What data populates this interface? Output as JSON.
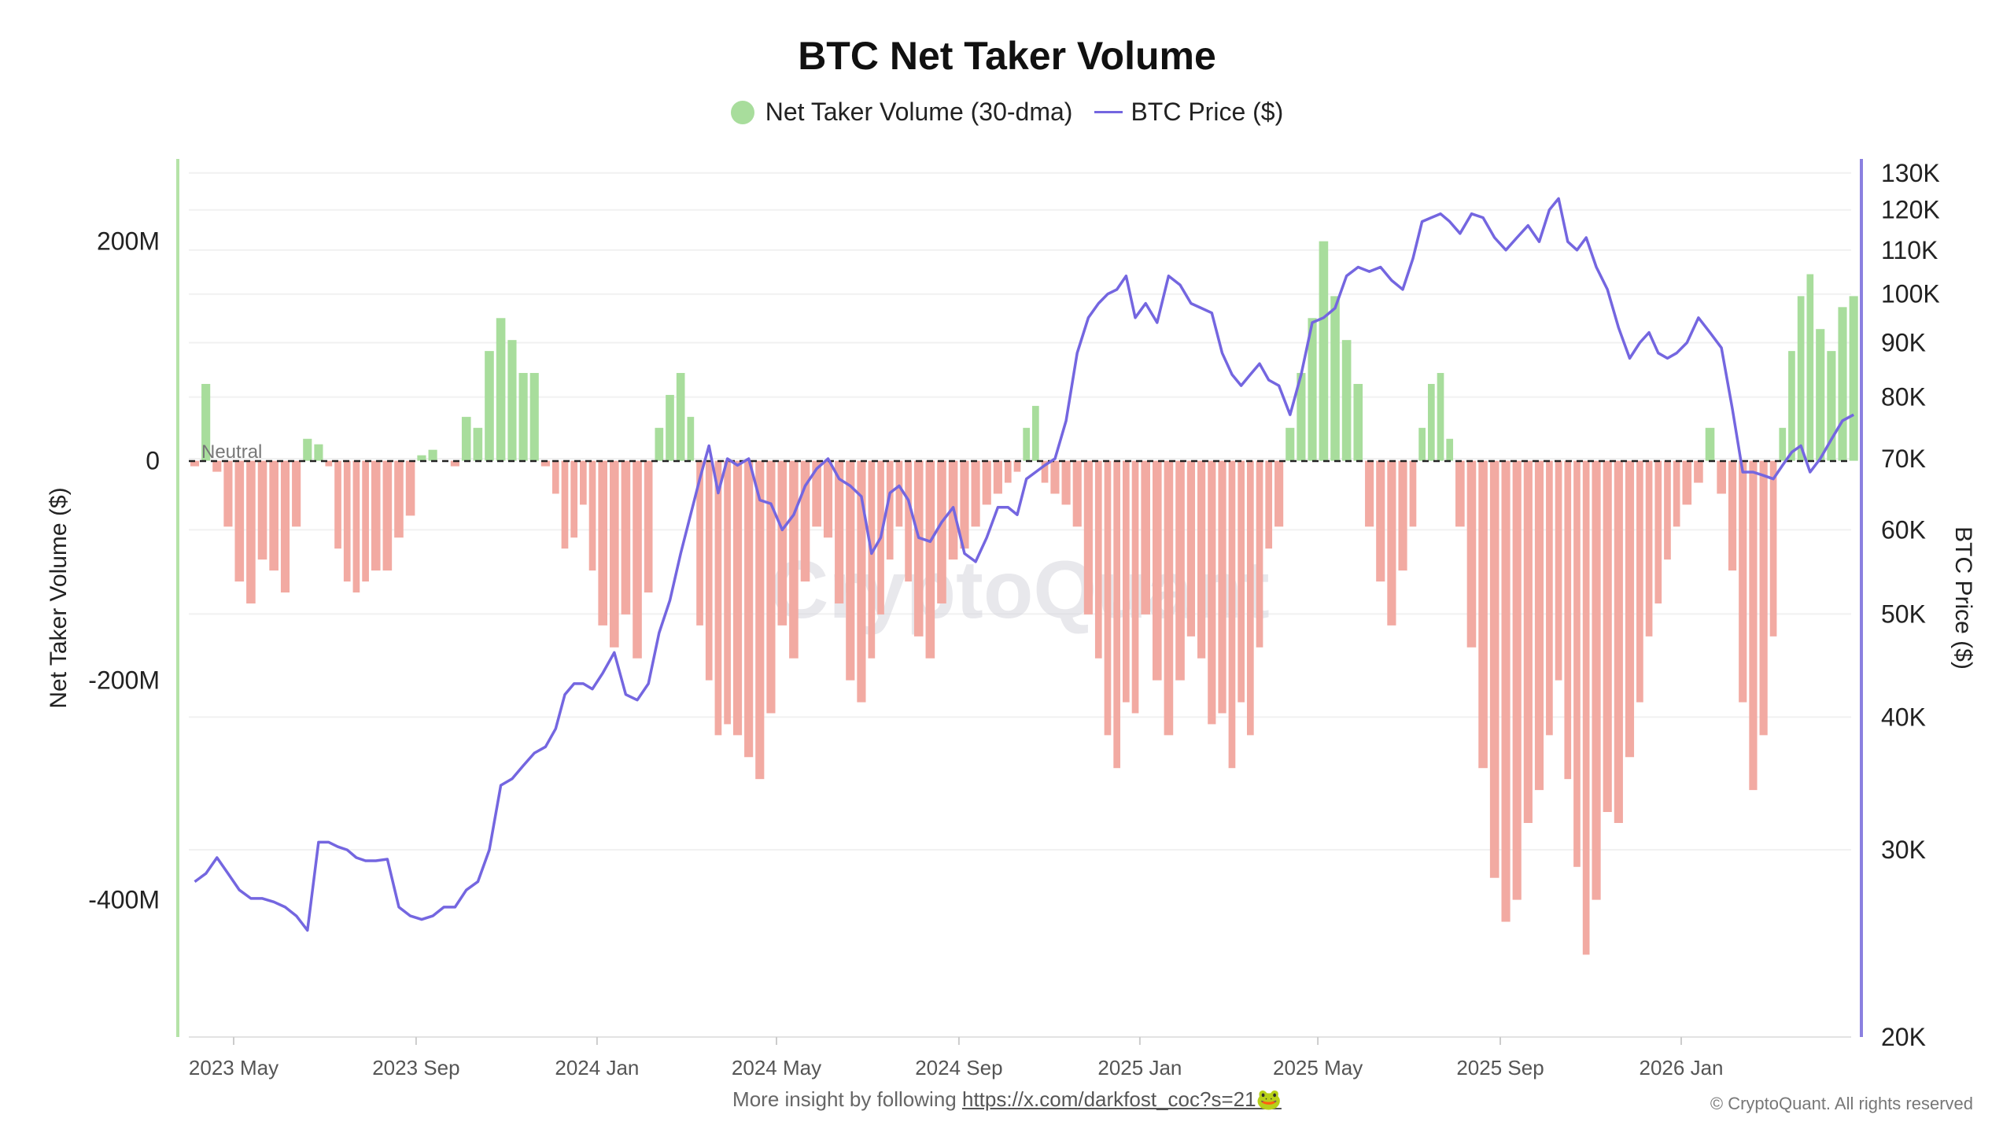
{
  "chart_data": {
    "type": "bar+line",
    "title": "BTC Net Taker Volume",
    "legend": [
      {
        "name": "Net Taker Volume (30-dma)",
        "marker": "circle",
        "color": "#a8dd9c"
      },
      {
        "name": "BTC Price ($)",
        "marker": "line",
        "color": "#7466e0"
      }
    ],
    "legend_placement": "top-center",
    "ylabel_left": "Net Taker Volume ($)",
    "ylabel_right": "BTC Price ($)",
    "left_ticks": [
      "200M",
      "0",
      "-200M",
      "-400M"
    ],
    "left_tick_values": [
      200,
      0,
      -200,
      -400
    ],
    "left_ylim_millions": [
      -525,
      275
    ],
    "right_ticks": [
      "130K",
      "120K",
      "110K",
      "100K",
      "90K",
      "80K",
      "70K",
      "60K",
      "50K",
      "40K",
      "30K",
      "20K"
    ],
    "right_tick_values": [
      130000,
      120000,
      110000,
      100000,
      90000,
      80000,
      70000,
      60000,
      50000,
      40000,
      30000,
      20000
    ],
    "right_scale": "log",
    "right_ylim": [
      20000,
      134000
    ],
    "x_ticks": [
      "2023 May",
      "2023 Sep",
      "2024 Jan",
      "2024 May",
      "2024 Sep",
      "2025 Jan",
      "2025 May",
      "2025 Sep",
      "2026 Jan"
    ],
    "x_tick_dates": [
      "2023-05-01",
      "2023-09-01",
      "2024-01-01",
      "2024-05-01",
      "2024-09-01",
      "2025-01-01",
      "2025-05-01",
      "2025-09-01",
      "2026-01-01"
    ],
    "neutral_label": "Neutral",
    "positive_color": "#a8dd9c",
    "negative_color": "#f2aaa2",
    "price_color": "#7466e0",
    "grid": true,
    "watermark": "CryptoQuant",
    "series_weekly_by_month": [
      {
        "month": "2023-04",
        "net_taker_m": [
          -5,
          70,
          -10,
          -60
        ],
        "price": [
          28000,
          28500,
          29500,
          28500
        ]
      },
      {
        "month": "2023-05",
        "net_taker_m": [
          -110,
          -130,
          -90,
          -100
        ],
        "price": [
          27500,
          27000,
          27000,
          26800
        ]
      },
      {
        "month": "2023-06",
        "net_taker_m": [
          -120,
          -60,
          20,
          15
        ],
        "price": [
          26500,
          26000,
          25200,
          30500
        ]
      },
      {
        "month": "2023-07",
        "net_taker_m": [
          -5,
          -80,
          -110,
          -120,
          -110
        ],
        "price": [
          30500,
          30200,
          30000,
          29500,
          29300
        ]
      },
      {
        "month": "2023-08",
        "net_taker_m": [
          -100,
          -100,
          -70,
          -50
        ],
        "price": [
          29300,
          29400,
          26500,
          26000
        ]
      },
      {
        "month": "2023-09",
        "net_taker_m": [
          5,
          10,
          0,
          -5
        ],
        "price": [
          25800,
          26000,
          26500,
          26500
        ]
      },
      {
        "month": "2023-10",
        "net_taker_m": [
          40,
          30,
          100,
          130
        ],
        "price": [
          27500,
          28000,
          30000,
          34500
        ]
      },
      {
        "month": "2023-11",
        "net_taker_m": [
          110,
          80,
          80,
          -5
        ],
        "price": [
          35000,
          36000,
          37000,
          37500
        ]
      },
      {
        "month": "2023-12",
        "net_taker_m": [
          -30,
          -80,
          -70,
          -40,
          -100
        ],
        "price": [
          39000,
          42000,
          43000,
          43000,
          42500
        ]
      },
      {
        "month": "2024-01",
        "net_taker_m": [
          -150,
          -170,
          -140,
          -180
        ],
        "price": [
          44000,
          46000,
          42000,
          41500
        ]
      },
      {
        "month": "2024-02",
        "net_taker_m": [
          -120,
          30,
          60,
          80
        ],
        "price": [
          43000,
          48000,
          51500,
          57000
        ]
      },
      {
        "month": "2024-03",
        "net_taker_m": [
          40,
          -150,
          -200,
          -250,
          -240
        ],
        "price": [
          62000,
          67000,
          72000,
          65000,
          70000
        ]
      },
      {
        "month": "2024-04",
        "net_taker_m": [
          -250,
          -270,
          -290,
          -230
        ],
        "price": [
          69000,
          70000,
          64000,
          63500
        ]
      },
      {
        "month": "2024-05",
        "net_taker_m": [
          -150,
          -180,
          -110,
          -60
        ],
        "price": [
          60000,
          62000,
          66000,
          68500
        ]
      },
      {
        "month": "2024-06",
        "net_taker_m": [
          -70,
          -130,
          -200,
          -220
        ],
        "price": [
          70000,
          67000,
          66000,
          64500
        ]
      },
      {
        "month": "2024-07",
        "net_taker_m": [
          -180,
          -140,
          -90,
          -60,
          -110
        ],
        "price": [
          57000,
          59000,
          65000,
          66000,
          64000
        ]
      },
      {
        "month": "2024-08",
        "net_taker_m": [
          -160,
          -180,
          -130,
          -90
        ],
        "price": [
          59000,
          58500,
          61000,
          63000
        ]
      },
      {
        "month": "2024-09",
        "net_taker_m": [
          -80,
          -60,
          -40,
          -30
        ],
        "price": [
          57000,
          56000,
          59000,
          63000
        ]
      },
      {
        "month": "2024-10",
        "net_taker_m": [
          -20,
          -10,
          30,
          50,
          -20
        ],
        "price": [
          63000,
          62000,
          67000,
          68000,
          69000
        ]
      },
      {
        "month": "2024-11",
        "net_taker_m": [
          -30,
          -40,
          -60,
          -140
        ],
        "price": [
          70000,
          76000,
          88000,
          95000
        ]
      },
      {
        "month": "2024-12",
        "net_taker_m": [
          -180,
          -250,
          -280,
          -220,
          -230
        ],
        "price": [
          98000,
          100000,
          101000,
          104000,
          95000
        ]
      },
      {
        "month": "2025-01",
        "net_taker_m": [
          -140,
          -200,
          -250,
          -200
        ],
        "price": [
          98000,
          94000,
          104000,
          102000
        ]
      },
      {
        "month": "2025-02",
        "net_taker_m": [
          -160,
          -180,
          -240,
          -230
        ],
        "price": [
          98000,
          97000,
          96000,
          88000
        ]
      },
      {
        "month": "2025-03",
        "net_taker_m": [
          -280,
          -220,
          -250,
          -170,
          -80
        ],
        "price": [
          84000,
          82000,
          84000,
          86000,
          83000
        ]
      },
      {
        "month": "2025-04",
        "net_taker_m": [
          -60,
          30,
          80,
          130
        ],
        "price": [
          82000,
          77000,
          84000,
          94000
        ]
      },
      {
        "month": "2025-05",
        "net_taker_m": [
          200,
          150,
          110,
          70
        ],
        "price": [
          95000,
          97000,
          104000,
          106000
        ]
      },
      {
        "month": "2025-06",
        "net_taker_m": [
          -60,
          -110,
          -150,
          -100
        ],
        "price": [
          105000,
          106000,
          103000,
          101000
        ]
      },
      {
        "month": "2025-07",
        "net_taker_m": [
          -60,
          30,
          70,
          80,
          20
        ],
        "price": [
          108000,
          117000,
          118000,
          119000,
          117000
        ]
      },
      {
        "month": "2025-08",
        "net_taker_m": [
          -60,
          -170,
          -280,
          -380
        ],
        "price": [
          114000,
          119000,
          118000,
          113000
        ]
      },
      {
        "month": "2025-09",
        "net_taker_m": [
          -420,
          -400,
          -330,
          -300
        ],
        "price": [
          110000,
          113000,
          116000,
          112000
        ]
      },
      {
        "month": "2025-10",
        "net_taker_m": [
          -250,
          -200,
          -290,
          -370,
          -450
        ],
        "price": [
          120000,
          123000,
          112000,
          110000,
          113000
        ]
      },
      {
        "month": "2025-11",
        "net_taker_m": [
          -400,
          -320,
          -330,
          -270
        ],
        "price": [
          106000,
          101000,
          93000,
          87000
        ]
      },
      {
        "month": "2025-12",
        "net_taker_m": [
          -220,
          -160,
          -130,
          -90,
          -60
        ],
        "price": [
          90000,
          92000,
          88000,
          87000,
          88000
        ]
      },
      {
        "month": "2026-01",
        "net_taker_m": [
          -40,
          -20,
          30,
          -30
        ],
        "price": [
          90000,
          95000,
          92000,
          89000
        ]
      },
      {
        "month": "2026-02",
        "net_taker_m": [
          -100,
          -220,
          -300,
          -250
        ],
        "price": [
          78000,
          68000,
          68000,
          67500
        ]
      },
      {
        "month": "2026-03",
        "net_taker_m": [
          -160,
          30,
          100,
          150,
          170
        ],
        "price": [
          67000,
          69000,
          71000,
          72000,
          68000
        ]
      },
      {
        "month": "2026-04",
        "net_taker_m": [
          120,
          100,
          140,
          150
        ],
        "price": [
          70000,
          73000,
          76000,
          77000
        ]
      }
    ]
  },
  "footer": {
    "text": "More insight by following",
    "link": "https://x.com/darkfost_coc?s=21🐸",
    "copyright": "© CryptoQuant. All rights reserved"
  }
}
